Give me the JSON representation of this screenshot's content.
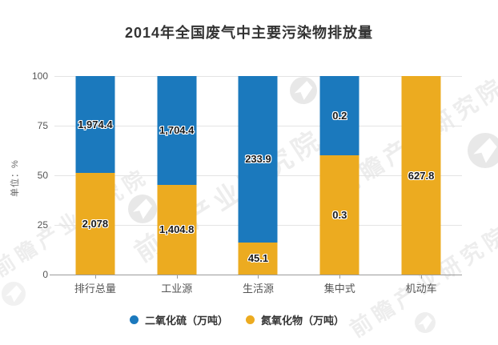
{
  "title": "2014年全国废气中主要污染物排放量",
  "y_axis": {
    "unit_label": "单位：%",
    "ticks": [
      "100",
      "75",
      "50",
      "25",
      "0"
    ]
  },
  "chart_data": {
    "type": "bar",
    "subtype": "stacked-percent",
    "title": "2014年全国废气中主要污染物排放量",
    "xlabel": "",
    "ylabel": "单位：%",
    "ylim": [
      0,
      100
    ],
    "yticks": [
      0,
      25,
      50,
      75,
      100
    ],
    "grid": true,
    "legend_position": "bottom",
    "categories": [
      "排行总量",
      "工业源",
      "生活源",
      "集中式",
      "机动车"
    ],
    "series": [
      {
        "name": "二氧化硫（万吨）",
        "color": "#1b79bd",
        "stack_position": "top",
        "values": [
          1974.4,
          1704.4,
          233.9,
          0.2,
          0
        ],
        "labels": [
          "1,974.4",
          "1,704.4",
          "233.9",
          "0.2",
          ""
        ]
      },
      {
        "name": "氮氧化物（万吨）",
        "color": "#ecab20",
        "stack_position": "bottom",
        "values": [
          2078,
          1404.8,
          45.1,
          0.3,
          627.8
        ],
        "labels": [
          "2,078",
          "1,404.8",
          "45.1",
          "0.3",
          "627.8"
        ]
      }
    ]
  },
  "legend": [
    {
      "label": "二氧化硫（万吨）",
      "color": "#1b79bd"
    },
    {
      "label": "氮氧化物（万吨）",
      "color": "#ecab20"
    }
  ],
  "watermark": {
    "text": "前瞻产业研究院",
    "logo": "qianzhan-logo"
  }
}
